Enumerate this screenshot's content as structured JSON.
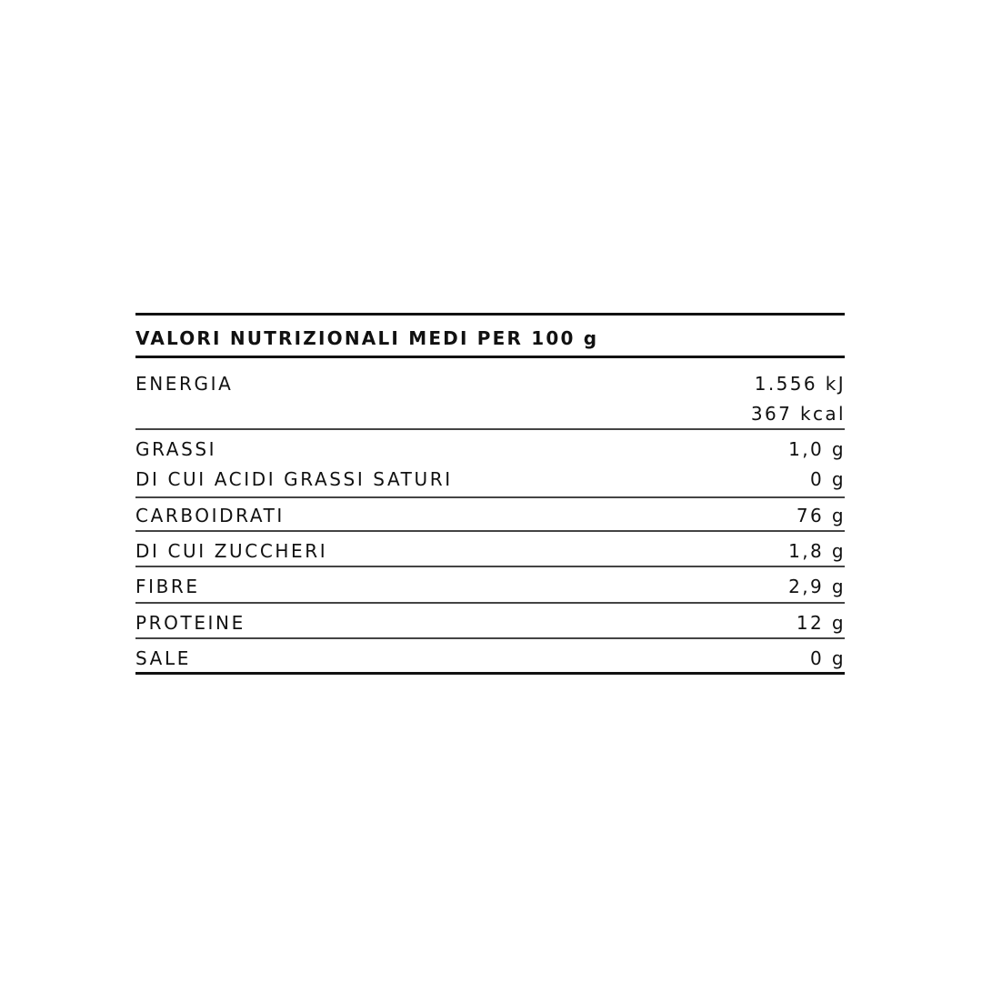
{
  "title": "VALORI NUTRIZIONALI MEDI PER 100 g",
  "rows": [
    {
      "label": "ENERGIA",
      "value": "1.556 kJ",
      "value2": "367 kcal"
    },
    {
      "label": "GRASSI",
      "value": "1,0 g"
    },
    {
      "label": "DI CUI ACIDI GRASSI SATURI",
      "value": "0 g"
    },
    {
      "label": "CARBOIDRATI",
      "value": "76 g"
    },
    {
      "label": "DI CUI ZUCCHERI",
      "value": "1,8 g"
    },
    {
      "label": "FIBRE",
      "value": "2,9 g"
    },
    {
      "label": "PROTEINE",
      "value": "12 g"
    },
    {
      "label": "SALE",
      "value": "0 g"
    }
  ]
}
